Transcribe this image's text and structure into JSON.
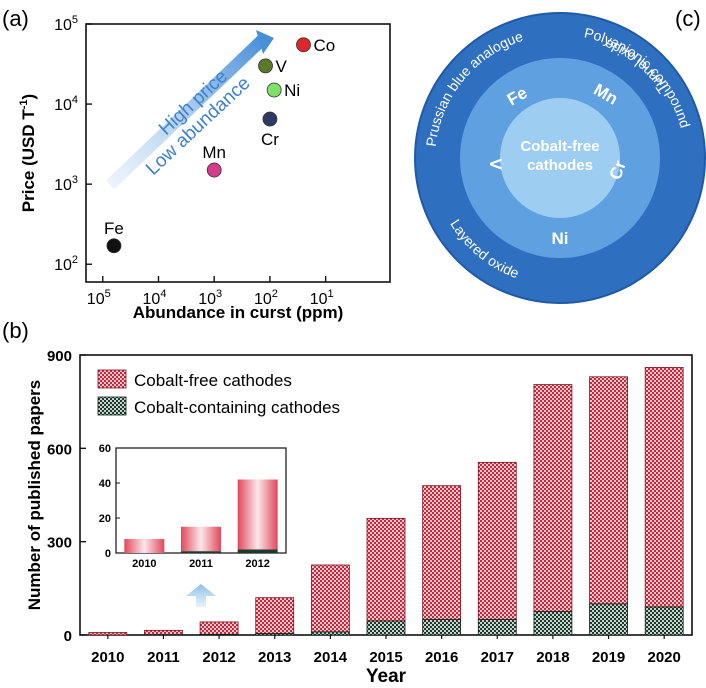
{
  "panel_labels": {
    "a": "(a)",
    "b": "(b)",
    "c": "(c)"
  },
  "colors": {
    "cobalt_free": "#c8283a",
    "cobalt_containing": "#1d3a2c",
    "circle_outer": "#2f6fc0",
    "circle_mid": "#5fa0e0",
    "circle_inner": "#9ecdf2",
    "arrow": "#4a90d9"
  },
  "chart_data": [
    {
      "panel": "a",
      "type": "scatter",
      "title": "",
      "xlabel": "Abundance in curst (ppm)",
      "ylabel_main": "Price (USD T",
      "ylabel_sup": "-1",
      "ylabel_end": ")",
      "x_scale": "log-reversed",
      "y_scale": "log",
      "xlim": [
        200000,
        0.7
      ],
      "ylim": [
        60,
        100000
      ],
      "x_ticks": [
        {
          "value": 100000,
          "base": "10",
          "exp": "5"
        },
        {
          "value": 10000,
          "base": "10",
          "exp": "4"
        },
        {
          "value": 1000,
          "base": "10",
          "exp": "3"
        },
        {
          "value": 100,
          "base": "10",
          "exp": "2"
        },
        {
          "value": 10,
          "base": "10",
          "exp": "1"
        }
      ],
      "y_ticks": [
        {
          "value": 100,
          "base": "10",
          "exp": "2"
        },
        {
          "value": 1000,
          "base": "10",
          "exp": "3"
        },
        {
          "value": 10000,
          "base": "10",
          "exp": "4"
        },
        {
          "value": 100000,
          "base": "10",
          "exp": "5"
        }
      ],
      "points": [
        {
          "label": "Fe",
          "x": 63000,
          "y": 170,
          "color": "#111111",
          "label_pos": "above"
        },
        {
          "label": "Mn",
          "x": 1000,
          "y": 1500,
          "color": "#d63a8a",
          "label_pos": "above"
        },
        {
          "label": "Cr",
          "x": 100,
          "y": 6500,
          "color": "#2e3a66",
          "label_pos": "below"
        },
        {
          "label": "Ni",
          "x": 84,
          "y": 15000,
          "color": "#7fe06a",
          "label_pos": "right"
        },
        {
          "label": "V",
          "x": 120,
          "y": 30000,
          "color": "#5a7a2a",
          "label_pos": "right"
        },
        {
          "label": "Co",
          "x": 25,
          "y": 55000,
          "color": "#e0262a",
          "label_pos": "right"
        }
      ],
      "annotation": {
        "line1": "High price",
        "line2": "Low abundance"
      }
    },
    {
      "panel": "b",
      "type": "bar",
      "stacked": true,
      "xlabel": "Year",
      "ylabel": "Number of published papers",
      "ylim": [
        0,
        900
      ],
      "y_ticks": [
        0,
        300,
        600,
        900
      ],
      "categories": [
        "2010",
        "2011",
        "2012",
        "2013",
        "2014",
        "2015",
        "2016",
        "2017",
        "2018",
        "2019",
        "2020"
      ],
      "series": [
        {
          "name": "Cobalt-containing cathodes",
          "key": "cobalt_containing",
          "values": [
            0,
            1,
            2,
            5,
            10,
            45,
            50,
            50,
            75,
            100,
            90
          ]
        },
        {
          "name": "Cobalt-free cathodes",
          "key": "cobalt_free",
          "values": [
            8,
            14,
            40,
            115,
            215,
            330,
            430,
            505,
            730,
            730,
            770
          ]
        }
      ],
      "legend": "top-left",
      "inset": {
        "categories": [
          "2010",
          "2011",
          "2012"
        ],
        "ylim": [
          0,
          60
        ],
        "y_ticks": [
          0,
          20,
          40,
          60
        ],
        "cobalt_free": [
          8,
          14,
          40
        ],
        "cobalt_containing": [
          0,
          1,
          2
        ]
      }
    }
  ],
  "diagram_c": {
    "center_line1": "Cobalt-free",
    "center_line2": "cathodes",
    "elements": [
      "Fe",
      "Mn",
      "Cr",
      "Ni",
      "V"
    ],
    "outer_labels": [
      "Prussian blue analogue",
      "Polyanionic compound",
      "Tunnel oxide",
      "Layered oxide"
    ]
  }
}
